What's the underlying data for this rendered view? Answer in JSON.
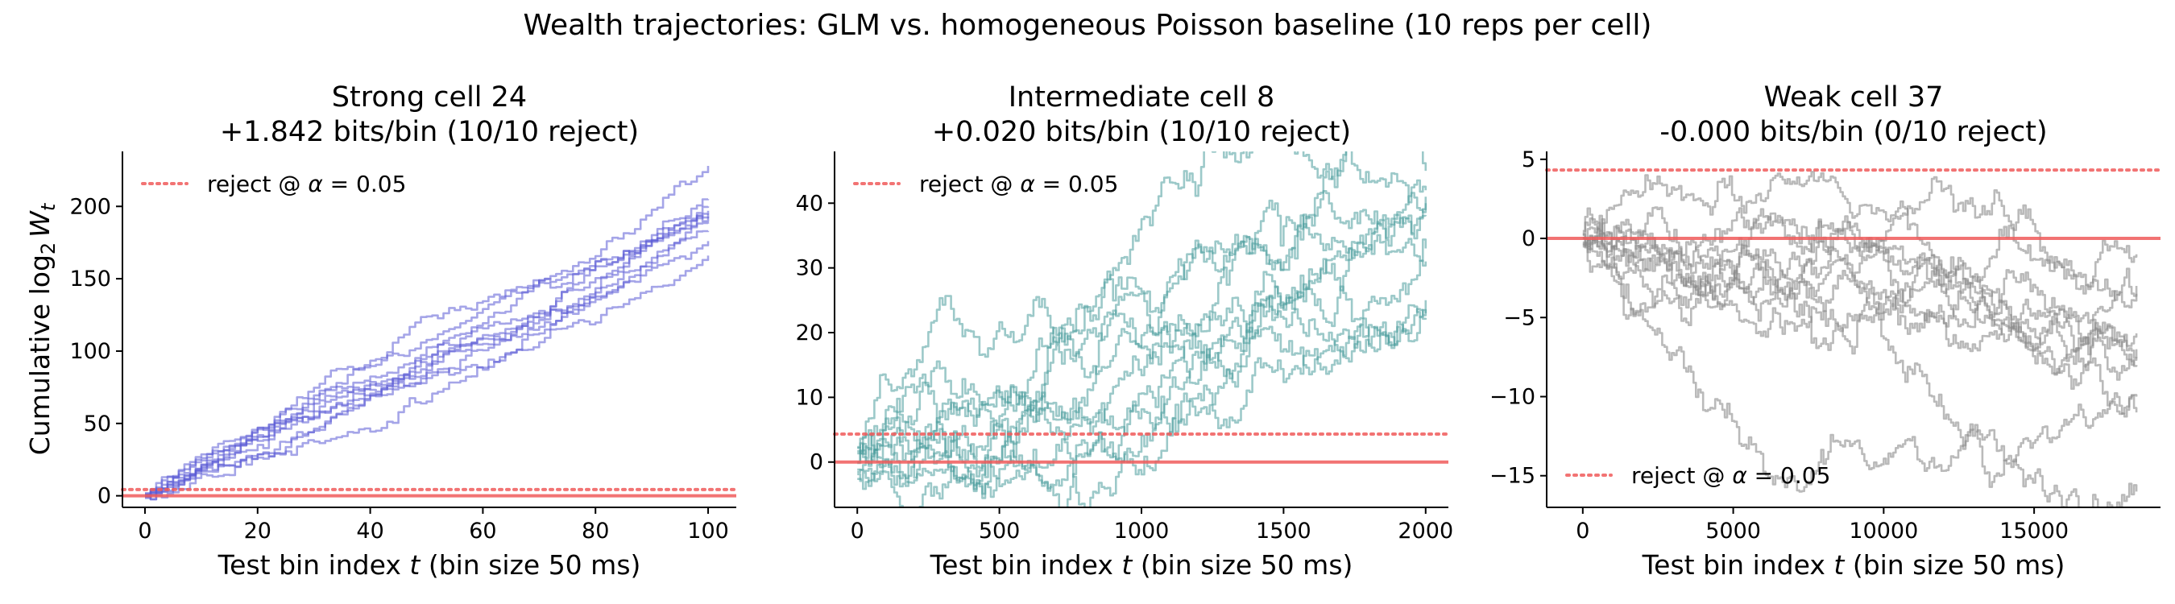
{
  "suptitle": "Wealth trajectories: GLM vs. homogeneous Poisson baseline (10 reps per cell)",
  "colors": {
    "strong": "#5b5bd6",
    "intermediate": "#4a9c9c",
    "weak": "#8c8c8c",
    "reject_line": "#f05a5a"
  },
  "chart_data": [
    {
      "type": "line",
      "title_line1": "Strong cell 24",
      "title_line2": "+1.842 bits/bin  (10/10 reject)",
      "xlabel": "Test bin index t  (bin size 50 ms)",
      "ylabel": "Cumulative log2 Wt",
      "xlim": [
        -4,
        105
      ],
      "ylim": [
        -8,
        238
      ],
      "xticks": [
        0,
        20,
        40,
        60,
        80,
        100
      ],
      "yticks": [
        0,
        50,
        100,
        150,
        200
      ],
      "threshold": 4.32,
      "baseline": 0,
      "legend": "reject @ α = 0.05",
      "legend_loc": "upper left",
      "color_key": "strong",
      "line_alpha": 0.55,
      "n_points": 101,
      "x_max": 100,
      "series": [
        {
          "final": 228,
          "noise": 6
        },
        {
          "final": 205,
          "noise": 6
        },
        {
          "final": 200,
          "noise": 5
        },
        {
          "final": 197,
          "noise": 6
        },
        {
          "final": 195,
          "noise": 5
        },
        {
          "final": 193,
          "noise": 6
        },
        {
          "final": 188,
          "noise": 5
        },
        {
          "final": 183,
          "noise": 6
        },
        {
          "final": 176,
          "noise": 5
        },
        {
          "final": 166,
          "noise": 6
        }
      ]
    },
    {
      "type": "line",
      "title_line1": "Intermediate cell 8",
      "title_line2": "+0.020 bits/bin  (10/10 reject)",
      "xlabel": "Test bin index t  (bin size 50 ms)",
      "ylabel": "",
      "xlim": [
        -80,
        2080
      ],
      "ylim": [
        -7,
        48
      ],
      "xticks": [
        0,
        500,
        1000,
        1500,
        2000
      ],
      "yticks": [
        0,
        10,
        20,
        30,
        40
      ],
      "threshold": 4.32,
      "baseline": 0,
      "legend": "reject @ α = 0.05",
      "legend_loc": "upper left",
      "color_key": "intermediate",
      "line_alpha": 0.55,
      "n_points": 201,
      "x_max": 2000,
      "series": [
        {
          "final": 45,
          "noise": 3.5
        },
        {
          "final": 42,
          "noise": 3.5
        },
        {
          "final": 41,
          "noise": 3.5
        },
        {
          "final": 40,
          "noise": 3.5
        },
        {
          "final": 38,
          "noise": 3.5
        },
        {
          "final": 33,
          "noise": 3.5
        },
        {
          "final": 31,
          "noise": 3.5
        },
        {
          "final": 25,
          "noise": 3.5
        },
        {
          "final": 23,
          "noise": 3.5
        },
        {
          "final": 22,
          "noise": 3.5
        }
      ]
    },
    {
      "type": "line",
      "title_line1": "Weak cell 37",
      "title_line2": "-0.000 bits/bin  (0/10 reject)",
      "xlabel": "Test bin index t  (bin size 50 ms)",
      "ylabel": "",
      "xlim": [
        -1200,
        19200
      ],
      "ylim": [
        -17,
        5.5
      ],
      "xticks": [
        0,
        5000,
        10000,
        15000
      ],
      "yticks": [
        5,
        0,
        -5,
        -10,
        -15
      ],
      "ytick_labels": [
        "5",
        "0",
        "−5",
        "−10",
        "−15"
      ],
      "threshold": 4.32,
      "baseline": 0,
      "legend": "reject @ α = 0.05",
      "legend_loc": "lower left",
      "color_key": "weak",
      "line_alpha": 0.6,
      "n_points": 231,
      "x_max": 18400,
      "series": [
        {
          "final": -1,
          "noise": 1.2
        },
        {
          "final": -3,
          "noise": 1.2
        },
        {
          "final": -3.5,
          "noise": 1.2
        },
        {
          "final": -6,
          "noise": 1.2
        },
        {
          "final": -7,
          "noise": 1.2
        },
        {
          "final": -7.5,
          "noise": 1.2
        },
        {
          "final": -8,
          "noise": 1.2
        },
        {
          "final": -10,
          "noise": 1.2
        },
        {
          "final": -11,
          "noise": 1.2
        },
        {
          "final": -16,
          "noise": 1.5
        }
      ]
    }
  ]
}
